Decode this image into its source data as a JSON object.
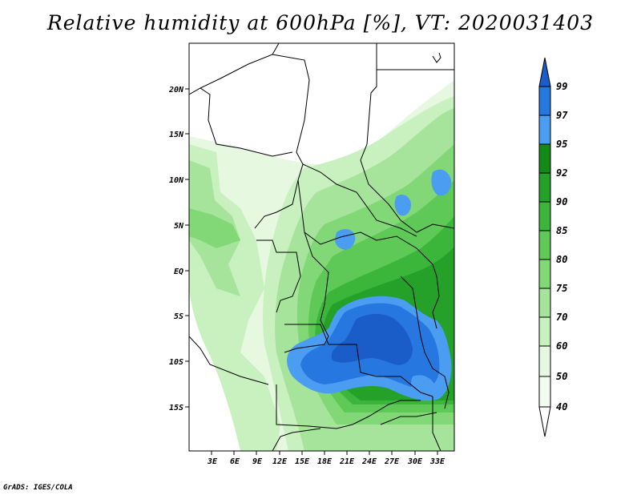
{
  "title": "Relative humidity at 600hPa [%], VT: 2020031403",
  "credit": "GrADS: IGES/COLA",
  "colors": {
    "c40": "#ffffff",
    "c50": "#e6f8e0",
    "c60": "#c9f0bf",
    "c70": "#a5e49a",
    "c75": "#82d876",
    "c80": "#5ec957",
    "c85": "#3bb63b",
    "c90": "#25a12a",
    "c92": "#128a18",
    "c95": "#4a9df0",
    "c97": "#2678e0",
    "c99": "#1a5cc8"
  },
  "map": {
    "lat_labels": [
      "20N",
      "15N",
      "10N",
      "5N",
      "EQ",
      "5S",
      "10S",
      "15S"
    ],
    "lon_labels": [
      "3E",
      "6E",
      "9E",
      "12E",
      "15E",
      "18E",
      "21E",
      "24E",
      "27E",
      "30E",
      "33E"
    ]
  },
  "colorbar": {
    "labels": [
      "99",
      "97",
      "95",
      "92",
      "90",
      "85",
      "80",
      "75",
      "70",
      "60",
      "50",
      "40"
    ]
  }
}
